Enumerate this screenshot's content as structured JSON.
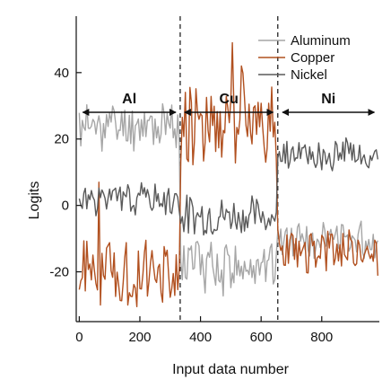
{
  "chart_data": {
    "type": "line",
    "xlabel": "Input data number",
    "ylabel": "Logits",
    "xlim": [
      -10,
      990
    ],
    "ylim": [
      -35,
      57
    ],
    "x_ticks": [
      0,
      200,
      400,
      600,
      800
    ],
    "y_ticks": [
      -20,
      0,
      20,
      40
    ],
    "legend_position": "top-right",
    "boundaries": [
      333,
      655
    ],
    "regions": [
      {
        "label": "Al",
        "from": 0,
        "to": 330
      },
      {
        "label": "Cu",
        "from": 336,
        "to": 651
      },
      {
        "label": "Ni",
        "from": 659,
        "to": 985
      }
    ],
    "sample_step": 5,
    "series": [
      {
        "name": "Aluminum",
        "color": "#a6a6a6",
        "segments": [
          {
            "x_start": 0,
            "x_end": 330,
            "mean": 24,
            "amp": 6,
            "seed": 11
          },
          {
            "x_start": 335,
            "x_end": 650,
            "mean": -18,
            "amp": 7,
            "seed": 12
          },
          {
            "x_start": 655,
            "x_end": 985,
            "mean": -10,
            "amp": 5,
            "seed": 13
          }
        ]
      },
      {
        "name": "Copper",
        "color": "#b1501f",
        "segments": [
          {
            "x_start": 0,
            "x_end": 330,
            "mean": -20,
            "amp": 8,
            "seed": 21
          },
          {
            "x_start": 335,
            "x_end": 650,
            "mean": 26,
            "amp": 11,
            "seed": 22
          },
          {
            "x_start": 655,
            "x_end": 985,
            "mean": -14,
            "amp": 6,
            "seed": 23
          }
        ],
        "spikes": [
          {
            "x": 65,
            "y": 7
          },
          {
            "x": 70,
            "y": -30
          },
          {
            "x": 505,
            "y": 49
          },
          {
            "x": 535,
            "y": 42
          }
        ]
      },
      {
        "name": "Nickel",
        "color": "#5a5a5a",
        "segments": [
          {
            "x_start": 0,
            "x_end": 330,
            "mean": 2,
            "amp": 4,
            "seed": 31
          },
          {
            "x_start": 335,
            "x_end": 650,
            "mean": -3,
            "amp": 5,
            "seed": 32
          },
          {
            "x_start": 655,
            "x_end": 985,
            "mean": 15,
            "amp": 4,
            "seed": 33
          }
        ]
      }
    ]
  }
}
